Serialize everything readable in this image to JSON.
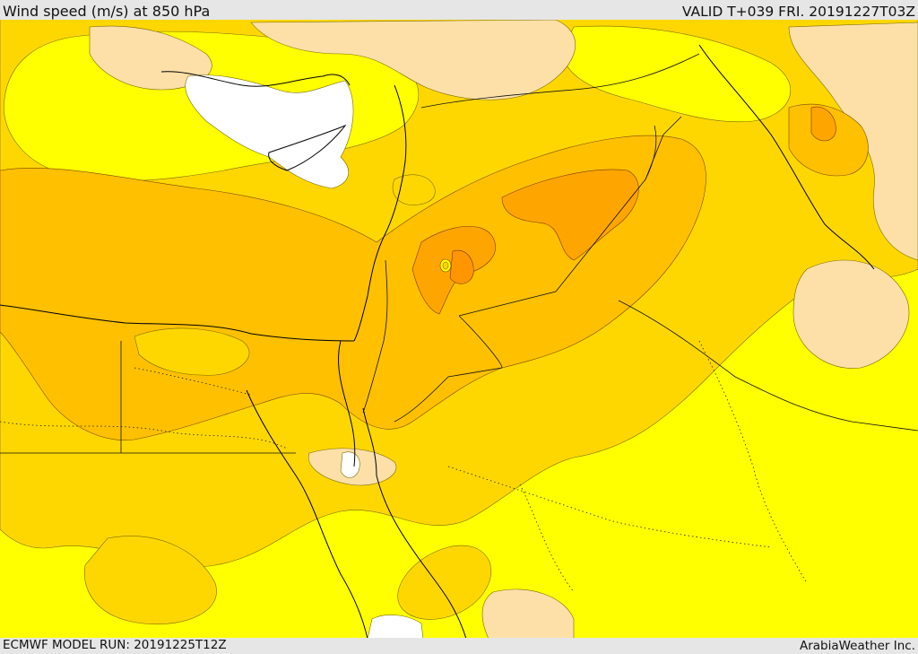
{
  "header": {
    "title": "Wind speed (m/s) at 850 hPa",
    "valid_time": "VALID T+039 FRI. 20191227T03Z"
  },
  "footer": {
    "model_run": "ECMWF MODEL RUN: 20191225T12Z",
    "credit": "ArabiaWeather Inc."
  },
  "map": {
    "colors": {
      "sea_base": "#ffff00",
      "lightest": "#ffffff",
      "peach": "#fce0a8",
      "light_orange": "#ffd700",
      "orange": "#ffc000",
      "deep_orange": "#ffa500",
      "deepest": "#ff9600",
      "coast_line": "#000000",
      "border_line": "#111111"
    }
  }
}
